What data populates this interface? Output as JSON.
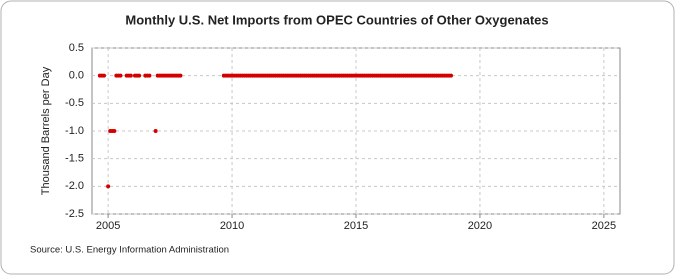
{
  "chart_data": {
    "type": "scatter",
    "title": "Monthly U.S. Net Imports from OPEC Countries of Other Oxygenates",
    "y_label": "Thousand Barrels per Day",
    "source": "Source: U.S. Energy Information Administration",
    "color": "#d40000",
    "grid": true,
    "xlim": [
      2004.35,
      2025.65
    ],
    "xticks": [
      2005,
      2010,
      2015,
      2020,
      2025
    ],
    "ylim": [
      -2.5,
      0.5
    ],
    "yticks": [
      0.5,
      {
        "value": 0,
        "label": "0.0"
      },
      -0.5,
      {
        "value": -1,
        "label": "-1.0"
      },
      -1.5,
      {
        "value": -2,
        "label": "-2.0"
      },
      -2.5
    ],
    "x": [
      2004.667,
      2004.75,
      2004.833,
      2005,
      2005.083,
      2005.167,
      2005.25,
      2005.333,
      2005.417,
      2005.5,
      2005.75,
      2005.833,
      2005.917,
      2006.083,
      2006.167,
      2006.25,
      2006.5,
      2006.583,
      2006.667,
      2006.917,
      2007,
      2007.083,
      2007.167,
      2007.25,
      2007.333,
      2007.417,
      2007.5,
      2007.583,
      2007.667,
      2007.75,
      2007.833,
      2007.917,
      2009.667,
      2009.75,
      2009.833,
      2009.917,
      2010,
      2010.083,
      2010.167,
      2010.25,
      2010.333,
      2010.417,
      2010.5,
      2010.583,
      2010.667,
      2010.75,
      2010.833,
      2010.917,
      2011,
      2011.083,
      2011.167,
      2011.25,
      2011.333,
      2011.417,
      2011.5,
      2011.583,
      2011.667,
      2011.75,
      2011.833,
      2011.917,
      2012,
      2012.083,
      2012.167,
      2012.25,
      2012.333,
      2012.417,
      2012.5,
      2012.583,
      2012.667,
      2012.75,
      2012.833,
      2012.917,
      2013,
      2013.083,
      2013.167,
      2013.25,
      2013.333,
      2013.417,
      2013.5,
      2013.583,
      2013.667,
      2013.75,
      2013.833,
      2013.917,
      2014,
      2014.083,
      2014.167,
      2014.25,
      2014.333,
      2014.417,
      2014.5,
      2014.583,
      2014.667,
      2014.75,
      2014.833,
      2014.917,
      2015,
      2015.083,
      2015.167,
      2015.25,
      2015.333,
      2015.417,
      2015.5,
      2015.583,
      2015.667,
      2015.75,
      2015.833,
      2015.917,
      2016,
      2016.083,
      2016.167,
      2016.25,
      2016.333,
      2016.417,
      2016.5,
      2016.583,
      2016.667,
      2016.75,
      2016.833,
      2016.917,
      2017,
      2017.083,
      2017.167,
      2017.25,
      2017.333,
      2017.417,
      2017.5,
      2017.583,
      2017.667,
      2017.75,
      2017.833,
      2017.917,
      2018,
      2018.083,
      2018.167,
      2018.25,
      2018.333,
      2018.417,
      2018.5,
      2018.583,
      2018.667,
      2018.75,
      2018.833
    ],
    "values": [
      0,
      0,
      0,
      -2,
      -1,
      -1,
      -1,
      0,
      0,
      0,
      0,
      0,
      0,
      0,
      0,
      0,
      0,
      0,
      0,
      -1,
      0,
      0,
      0,
      0,
      0,
      0,
      0,
      0,
      0,
      0,
      0,
      0,
      0,
      0,
      0,
      0,
      0,
      0,
      0,
      0,
      0,
      0,
      0,
      0,
      0,
      0,
      0,
      0,
      0,
      0,
      0,
      0,
      0,
      0,
      0,
      0,
      0,
      0,
      0,
      0,
      0,
      0,
      0,
      0,
      0,
      0,
      0,
      0,
      0,
      0,
      0,
      0,
      0,
      0,
      0,
      0,
      0,
      0,
      0,
      0,
      0,
      0,
      0,
      0,
      0,
      0,
      0,
      0,
      0,
      0,
      0,
      0,
      0,
      0,
      0,
      0,
      0,
      0,
      0,
      0,
      0,
      0,
      0,
      0,
      0,
      0,
      0,
      0,
      0,
      0,
      0,
      0,
      0,
      0,
      0,
      0,
      0,
      0,
      0,
      0,
      0,
      0,
      0,
      0,
      0,
      0,
      0,
      0,
      0,
      0,
      0,
      0,
      0,
      0,
      0,
      0,
      0,
      0,
      0,
      0,
      0,
      0,
      0
    ]
  }
}
